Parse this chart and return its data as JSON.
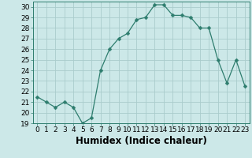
{
  "x": [
    0,
    1,
    2,
    3,
    4,
    5,
    6,
    7,
    8,
    9,
    10,
    11,
    12,
    13,
    14,
    15,
    16,
    17,
    18,
    19,
    20,
    21,
    22,
    23
  ],
  "y": [
    21.5,
    21.0,
    20.5,
    21.0,
    20.5,
    19.0,
    19.5,
    24.0,
    26.0,
    27.0,
    27.5,
    28.8,
    29.0,
    30.2,
    30.2,
    29.2,
    29.2,
    29.0,
    28.0,
    28.0,
    25.0,
    22.8,
    25.0,
    22.5
  ],
  "line_color": "#2e7d6e",
  "marker": "D",
  "marker_size": 2.5,
  "bg_color": "#cce8e8",
  "grid_color": "#aacccc",
  "xlabel": "Humidex (Indice chaleur)",
  "xlim": [
    -0.5,
    23.5
  ],
  "ylim": [
    19,
    30.5
  ],
  "yticks": [
    19,
    20,
    21,
    22,
    23,
    24,
    25,
    26,
    27,
    28,
    29,
    30
  ],
  "xticks": [
    0,
    1,
    2,
    3,
    4,
    5,
    6,
    7,
    8,
    9,
    10,
    11,
    12,
    13,
    14,
    15,
    16,
    17,
    18,
    19,
    20,
    21,
    22,
    23
  ],
  "tick_fontsize": 6.5,
  "xlabel_fontsize": 8.5,
  "axis_color": "#2e7d6e"
}
